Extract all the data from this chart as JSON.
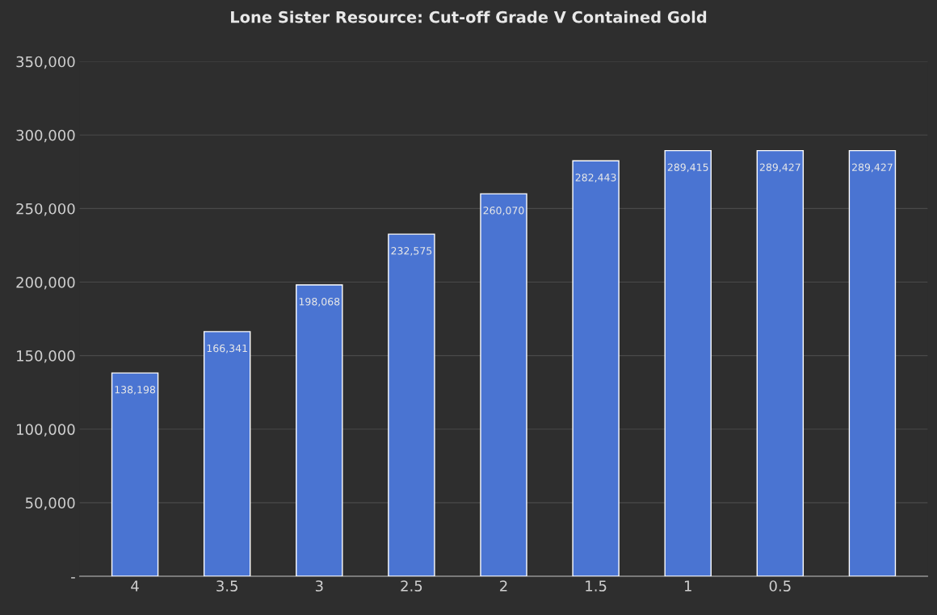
{
  "chart_data": {
    "type": "bar",
    "title": "Lone Sister Resource: Cut-off Grade V Contained Gold",
    "categories": [
      "4",
      "3.5",
      "3",
      "2.5",
      "2",
      "1.5",
      "1",
      "0.5",
      null
    ],
    "values": [
      138198,
      166341,
      198068,
      232575,
      260070,
      282443,
      289415,
      289427,
      289427
    ],
    "value_labels": [
      "138,198",
      "166,341",
      "198,068",
      "232,575",
      "260,070",
      "282,443",
      "289,415",
      "289,427",
      "289,427"
    ],
    "color": "#4a74d2",
    "ylim": [
      0,
      350000
    ],
    "yticks": [
      {
        "value": 0,
        "label": "-"
      },
      {
        "value": 50000,
        "label": "50,000"
      },
      {
        "value": 100000,
        "label": "100,000"
      },
      {
        "value": 150000,
        "label": "150,000"
      },
      {
        "value": 200000,
        "label": "200,000"
      },
      {
        "value": 250000,
        "label": "250,000"
      },
      {
        "value": 300000,
        "label": "300,000"
      },
      {
        "value": 350000,
        "label": "350,000"
      }
    ],
    "grid": "y"
  }
}
